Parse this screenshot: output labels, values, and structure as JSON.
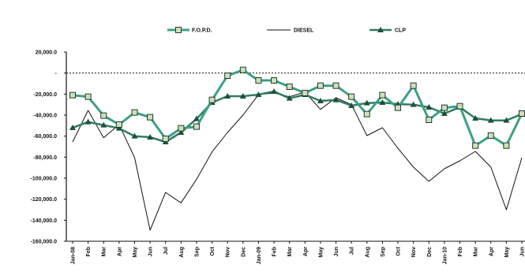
{
  "legend": {
    "fopd_label": "F.O.P.D.",
    "diesel_label": "DIESEL",
    "clp_label": "CLP"
  },
  "chart_data": {
    "type": "line",
    "categories": [
      "Jan-08",
      "Feb",
      "Mar",
      "Apr",
      "May",
      "Jun",
      "Jul",
      "Aug",
      "Sep",
      "Oct",
      "Nov",
      "Dec",
      "Jan-09",
      "Feb",
      "Mar",
      "Apr",
      "May",
      "Jun",
      "Jul",
      "Aug",
      "Sep",
      "Oct",
      "Nov",
      "Dec",
      "Jan-10",
      "Feb",
      "Mar",
      "Apr",
      "May",
      "Jun"
    ],
    "series": [
      {
        "name": "F.O.P.D.",
        "marker": "square",
        "color": "#3d9f86",
        "marker_fill": "#cfe0b8",
        "values": [
          -21000,
          -22500,
          -40500,
          -49000,
          -37500,
          -42000,
          -62500,
          -52500,
          -51000,
          -25500,
          -2500,
          3000,
          -7000,
          -7000,
          -13000,
          -19000,
          -12000,
          -12000,
          -22500,
          -39000,
          -21000,
          -33000,
          -12000,
          -44500,
          -33000,
          -31500,
          -69000,
          -59500,
          -69000,
          -38500
        ]
      },
      {
        "name": "DIESEL",
        "marker": "none",
        "color": "#111111",
        "values": [
          -65500,
          -35500,
          -61500,
          -49000,
          -80500,
          -149500,
          -113500,
          -123500,
          -101000,
          -75000,
          -56500,
          -40000,
          -20500,
          -19000,
          -22500,
          -18000,
          -34500,
          -23500,
          -30000,
          -59500,
          -52000,
          -71500,
          -89500,
          -103000,
          -91000,
          -83500,
          -74500,
          -89500,
          -130000,
          -80500
        ]
      },
      {
        "name": "CLP",
        "marker": "triangle",
        "color": "#2e7d5f",
        "values": [
          -52000,
          -46500,
          -49500,
          -52500,
          -60000,
          -61000,
          -65500,
          -56500,
          -43500,
          -28000,
          -22000,
          -22000,
          -20500,
          -17500,
          -24000,
          -20500,
          -26500,
          -25500,
          -31000,
          -28500,
          -28000,
          -29500,
          -30000,
          -32500,
          -38500,
          -32500,
          -43000,
          -45000,
          -45000,
          -39000
        ]
      }
    ],
    "ylim": [
      -160000,
      20000
    ],
    "yticks": [
      20000,
      0,
      -20000,
      -40000,
      -60000,
      -80000,
      -100000,
      -120000,
      -140000,
      -160000
    ],
    "ytick_labels": [
      "20,000.0",
      "-",
      "-20,000.0",
      "-40,000.0",
      "-60,000.0",
      "-80,000.0",
      "-100,000.0",
      "-120,000.0",
      "-140,000.0",
      "-160,000.0"
    ],
    "grid": false,
    "zero_line": "dashed",
    "legend_position": "top"
  }
}
